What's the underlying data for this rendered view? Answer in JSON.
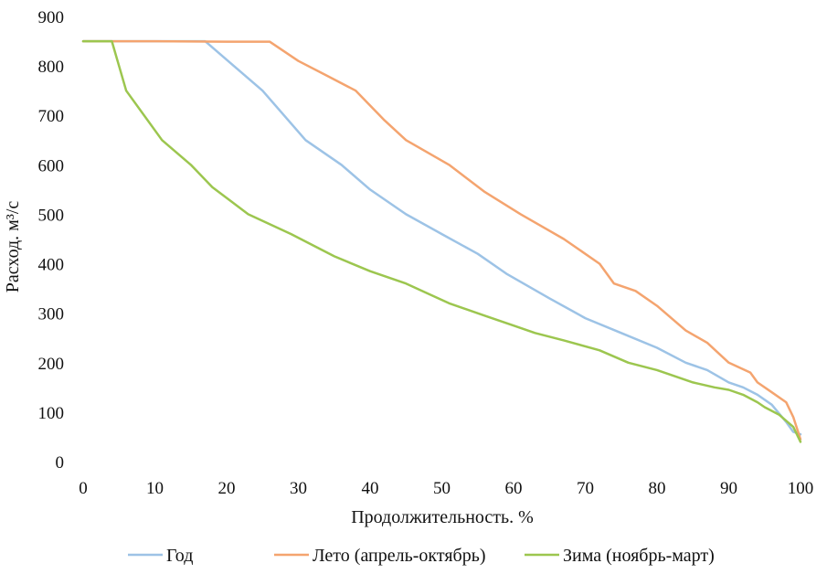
{
  "chart_data": {
    "type": "line",
    "xlabel": "Продолжительность. %",
    "ylabel": "Расход. м³/с",
    "xlim": [
      0,
      100
    ],
    "ylim": [
      0,
      900
    ],
    "xticks": [
      "0",
      "10",
      "20",
      "30",
      "40",
      "50",
      "60",
      "70",
      "80",
      "90",
      "100"
    ],
    "yticks": [
      "0",
      "100",
      "200",
      "300",
      "400",
      "500",
      "600",
      "700",
      "800",
      "900"
    ],
    "grid": false,
    "legend_position": "bottom",
    "series": [
      {
        "name": "Год",
        "color": "#9dc3e6",
        "x": [
          0,
          17,
          21,
          25,
          31,
          36,
          40,
          45,
          50,
          55,
          59,
          62,
          65,
          70,
          75,
          80,
          84,
          87,
          90,
          92,
          94,
          96,
          98,
          99,
          100
        ],
        "y": [
          850,
          850,
          800,
          750,
          650,
          600,
          550,
          500,
          460,
          420,
          380,
          355,
          330,
          290,
          260,
          230,
          200,
          185,
          160,
          150,
          135,
          115,
          80,
          60,
          55
        ]
      },
      {
        "name": "Лето (апрель-октябрь)",
        "color": "#f4a46f",
        "x": [
          0,
          10,
          20,
          26,
          30,
          34,
          38,
          42,
          45,
          51,
          56,
          61,
          67,
          72,
          73,
          74,
          77,
          80,
          84,
          87,
          90,
          93,
          94,
          96,
          98,
          99,
          100
        ],
        "y": [
          850,
          850,
          849,
          849,
          810,
          780,
          750,
          690,
          650,
          600,
          545,
          500,
          450,
          400,
          380,
          360,
          345,
          315,
          265,
          240,
          200,
          180,
          160,
          140,
          120,
          90,
          45
        ]
      },
      {
        "name": "Зима (ноябрь-март)",
        "color": "#9cc64f",
        "x": [
          0,
          4,
          6,
          11,
          15,
          18,
          23,
          29,
          35,
          40,
          45,
          48,
          51,
          56,
          60,
          63,
          67,
          72,
          76,
          80,
          82,
          85,
          88,
          90,
          92,
          94,
          95,
          97,
          99,
          100
        ],
        "y": [
          850,
          850,
          750,
          650,
          600,
          555,
          500,
          460,
          415,
          385,
          360,
          340,
          320,
          295,
          275,
          260,
          245,
          225,
          200,
          185,
          175,
          160,
          150,
          145,
          135,
          120,
          110,
          95,
          70,
          40
        ]
      }
    ]
  }
}
